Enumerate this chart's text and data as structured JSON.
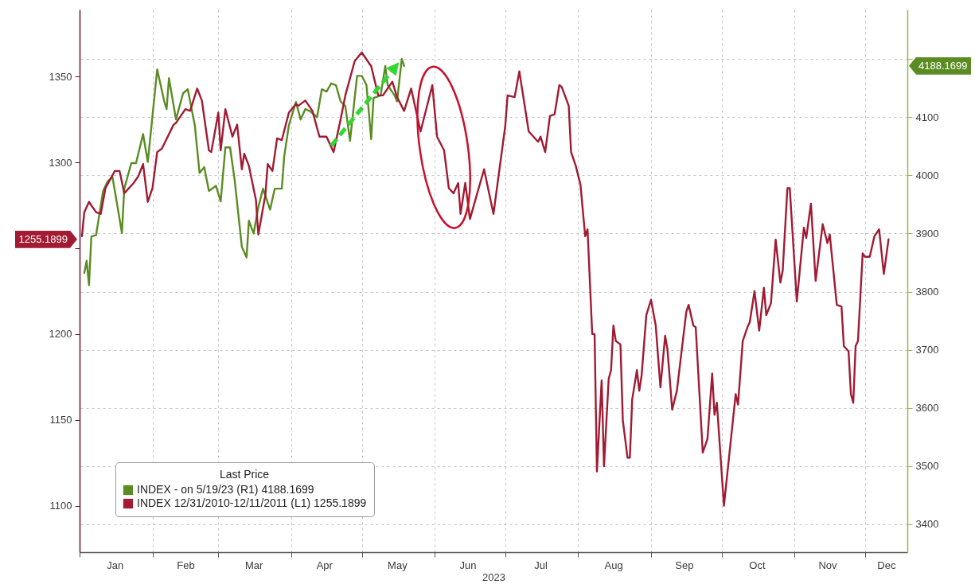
{
  "chart_data": {
    "type": "line",
    "xlim": [
      "2023-01-01",
      "2023-12-19"
    ],
    "xticks": [
      {
        "value": "2023-01-01",
        "label": null
      },
      {
        "value": "2023-01-16",
        "label": "Jan"
      },
      {
        "value": "2023-02-01",
        "label": null
      },
      {
        "value": "2023-02-15",
        "label": "Feb"
      },
      {
        "value": "2023-03-01",
        "label": null
      },
      {
        "value": "2023-03-16",
        "label": "Mar"
      },
      {
        "value": "2023-04-01",
        "label": null
      },
      {
        "value": "2023-04-15",
        "label": "Apr"
      },
      {
        "value": "2023-05-01",
        "label": null
      },
      {
        "value": "2023-05-16",
        "label": "May"
      },
      {
        "value": "2023-06-01",
        "label": null
      },
      {
        "value": "2023-06-15",
        "label": "Jun"
      },
      {
        "value": "2023-07-01",
        "label": null
      },
      {
        "value": "2023-07-16",
        "label": "Jul"
      },
      {
        "value": "2023-08-01",
        "label": null
      },
      {
        "value": "2023-08-16",
        "label": "Aug"
      },
      {
        "value": "2023-09-01",
        "label": null
      },
      {
        "value": "2023-09-15",
        "label": "Sep"
      },
      {
        "value": "2023-10-01",
        "label": null
      },
      {
        "value": "2023-10-16",
        "label": "Oct"
      },
      {
        "value": "2023-11-01",
        "label": null
      },
      {
        "value": "2023-11-15",
        "label": "Nov"
      },
      {
        "value": "2023-12-01",
        "label": null
      },
      {
        "value": "2023-12-10",
        "label": "Dec"
      }
    ],
    "xlabel": "2023",
    "ylim": [
      1073,
      1389
    ],
    "yticks": [
      1100,
      1150,
      1200,
      {
        "value": 1250,
        "label": null
      },
      1300,
      1350
    ],
    "y2lim": [
      3352,
      4285
    ],
    "y2ticks": [
      3400,
      3500,
      3600,
      3700,
      3800,
      3900,
      4000,
      4100,
      {
        "value": 4200,
        "label": null
      }
    ],
    "grid": true,
    "legend": "bottom left",
    "legend_title": "Last Price",
    "annotations": [
      "4188.1699",
      "1255.1899"
    ],
    "series": [
      {
        "name": "INDEX - on 5/19/23 (R1) 4188.1699",
        "color": "#5b8c23",
        "axis": "y2",
        "x": [
          "2023-01-03",
          "2023-01-04",
          "2023-01-05",
          "2023-01-06",
          "2023-01-08",
          "2023-01-11",
          "2023-01-13",
          "2023-01-15",
          "2023-01-19",
          "2023-01-20",
          "2023-01-23",
          "2023-01-25",
          "2023-01-28",
          "2023-01-30",
          "2023-02-03",
          "2023-02-06",
          "2023-02-07",
          "2023-02-08",
          "2023-02-11",
          "2023-02-14",
          "2023-02-16",
          "2023-02-19",
          "2023-02-21",
          "2023-02-23",
          "2023-02-25",
          "2023-02-28",
          "2023-03-02",
          "2023-03-04",
          "2023-03-06",
          "2023-03-08",
          "2023-03-11",
          "2023-03-13",
          "2023-03-14",
          "2023-03-16",
          "2023-03-18",
          "2023-03-20",
          "2023-03-23",
          "2023-03-25",
          "2023-03-28",
          "2023-03-29",
          "2023-03-31",
          "2023-04-03",
          "2023-04-05",
          "2023-04-07",
          "2023-04-09",
          "2023-04-12",
          "2023-04-14",
          "2023-04-16",
          "2023-04-18",
          "2023-04-20",
          "2023-04-22",
          "2023-04-24",
          "2023-04-26",
          "2023-04-29",
          "2023-05-01",
          "2023-05-03",
          "2023-05-05",
          "2023-05-06",
          "2023-05-09",
          "2023-05-11",
          "2023-05-12",
          "2023-05-15",
          "2023-05-16",
          "2023-05-18",
          "2023-05-19"
        ],
        "values": [
          3832,
          3853,
          3811,
          3895,
          3897,
          3973,
          3990,
          3997,
          3901,
          3977,
          4021,
          4021,
          4071,
          4023,
          4182,
          4127,
          4114,
          4167,
          4096,
          4141,
          4148,
          4086,
          4004,
          4014,
          3973,
          3982,
          3955,
          4048,
          4048,
          3990,
          3877,
          3859,
          3922,
          3900,
          3945,
          3977,
          3941,
          3977,
          3977,
          4032,
          4086,
          4126,
          4096,
          4114,
          4110,
          4100,
          4148,
          4144,
          4158,
          4155,
          4127,
          4119,
          4059,
          4171,
          4171,
          4155,
          4062,
          4133,
          4137,
          4188,
          4155,
          4137,
          4127,
          4200,
          4188.1699
        ]
      },
      {
        "name": "INDEX 12/31/2010-12/11/2011 (L1) 1255.1899",
        "color": "#a01b33",
        "x": [
          "2023-01-02",
          "2023-01-03",
          "2023-01-05",
          "2023-01-08",
          "2023-01-10",
          "2023-01-12",
          "2023-01-14",
          "2023-01-16",
          "2023-01-18",
          "2023-01-20",
          "2023-01-24",
          "2023-01-26",
          "2023-01-28",
          "2023-01-30",
          "2023-02-01",
          "2023-02-03",
          "2023-02-05",
          "2023-02-10",
          "2023-02-11",
          "2023-02-15",
          "2023-02-17",
          "2023-02-20",
          "2023-02-22",
          "2023-02-25",
          "2023-02-26",
          "2023-03-01",
          "2023-03-02",
          "2023-03-04",
          "2023-03-07",
          "2023-03-09",
          "2023-03-11",
          "2023-03-12",
          "2023-03-14",
          "2023-03-17",
          "2023-03-18",
          "2023-03-21",
          "2023-03-22",
          "2023-03-24",
          "2023-03-26",
          "2023-03-28",
          "2023-03-31",
          "2023-04-03",
          "2023-04-04",
          "2023-04-07",
          "2023-04-10",
          "2023-04-13",
          "2023-04-16",
          "2023-04-19",
          "2023-04-22",
          "2023-04-24",
          "2023-04-28",
          "2023-05-01",
          "2023-05-05",
          "2023-05-08",
          "2023-05-10",
          "2023-05-14",
          "2023-05-16",
          "2023-05-19",
          "2023-05-22",
          "2023-05-26",
          "2023-05-31",
          "2023-06-02",
          "2023-06-05",
          "2023-06-07",
          "2023-06-09",
          "2023-06-11",
          "2023-06-12",
          "2023-06-14",
          "2023-06-16",
          "2023-06-22",
          "2023-06-26",
          "2023-07-01",
          "2023-07-02",
          "2023-07-05",
          "2023-07-07",
          "2023-07-11",
          "2023-07-13",
          "2023-07-15",
          "2023-07-16",
          "2023-07-18",
          "2023-07-20",
          "2023-07-22",
          "2023-07-24",
          "2023-07-25",
          "2023-07-28",
          "2023-07-29",
          "2023-07-31",
          "2023-08-02",
          "2023-08-04",
          "2023-08-05",
          "2023-08-07",
          "2023-08-08",
          "2023-08-09",
          "2023-08-11",
          "2023-08-12",
          "2023-08-14",
          "2023-08-15",
          "2023-08-16",
          "2023-08-17",
          "2023-08-19",
          "2023-08-20",
          "2023-08-22",
          "2023-08-23",
          "2023-08-24",
          "2023-08-26",
          "2023-08-27",
          "2023-08-28",
          "2023-08-30",
          "2023-09-01",
          "2023-09-03",
          "2023-09-05",
          "2023-09-07",
          "2023-09-08",
          "2023-09-10",
          "2023-09-12",
          "2023-09-16",
          "2023-09-17",
          "2023-09-19",
          "2023-09-20",
          "2023-09-23",
          "2023-09-25",
          "2023-09-27",
          "2023-09-28",
          "2023-09-29",
          "2023-10-02",
          "2023-10-07",
          "2023-10-08",
          "2023-10-10",
          "2023-10-12",
          "2023-10-13",
          "2023-10-15",
          "2023-10-17",
          "2023-10-19",
          "2023-10-20",
          "2023-10-22",
          "2023-10-24",
          "2023-10-26",
          "2023-10-27",
          "2023-10-29",
          "2023-10-30",
          "2023-11-02",
          "2023-11-05",
          "2023-11-06",
          "2023-11-08",
          "2023-11-10",
          "2023-11-13",
          "2023-11-15",
          "2023-11-16",
          "2023-11-19",
          "2023-11-21",
          "2023-11-22",
          "2023-11-24",
          "2023-11-25",
          "2023-11-26",
          "2023-11-27",
          "2023-11-28",
          "2023-11-30",
          "2023-12-01",
          "2023-12-03",
          "2023-12-05",
          "2023-12-07",
          "2023-12-09",
          "2023-12-11"
        ],
        "values": [
          1257,
          1271,
          1277,
          1271,
          1270,
          1285,
          1290,
          1295,
          1295,
          1282,
          1288,
          1292,
          1299,
          1277,
          1285,
          1306,
          1308,
          1322,
          1323,
          1331,
          1330,
          1343,
          1336,
          1307,
          1306,
          1329,
          1307,
          1331,
          1315,
          1322,
          1296,
          1305,
          1298,
          1278,
          1258,
          1281,
          1299,
          1295,
          1314,
          1313,
          1329,
          1334,
          1333,
          1336,
          1330,
          1315,
          1315,
          1306,
          1325,
          1339,
          1359,
          1364,
          1356,
          1339,
          1339,
          1347,
          1338,
          1330,
          1343,
          1318,
          1345,
          1315,
          1307,
          1285,
          1282,
          1288,
          1270,
          1288,
          1267,
          1296,
          1270,
          1321,
          1339,
          1338,
          1353,
          1318,
          1315,
          1312,
          1315,
          1306,
          1327,
          1328,
          1345,
          1344,
          1333,
          1306,
          1298,
          1287,
          1257,
          1261,
          1200,
          1200,
          1120,
          1173,
          1123,
          1174,
          1179,
          1205,
          1196,
          1194,
          1150,
          1128,
          1128,
          1162,
          1179,
          1167,
          1176,
          1211,
          1220,
          1205,
          1169,
          1199,
          1191,
          1156,
          1167,
          1213,
          1217,
          1205,
          1204,
          1131,
          1139,
          1177,
          1153,
          1160,
          1100,
          1165,
          1159,
          1196,
          1204,
          1207,
          1225,
          1202,
          1227,
          1211,
          1218,
          1255,
          1230,
          1237,
          1285,
          1285,
          1219,
          1262,
          1256,
          1276,
          1231,
          1264,
          1253,
          1258,
          1217,
          1216,
          1193,
          1190,
          1165,
          1160,
          1193,
          1196,
          1247,
          1245,
          1245,
          1257,
          1261,
          1235,
          1255.1899
        ]
      }
    ]
  }
}
